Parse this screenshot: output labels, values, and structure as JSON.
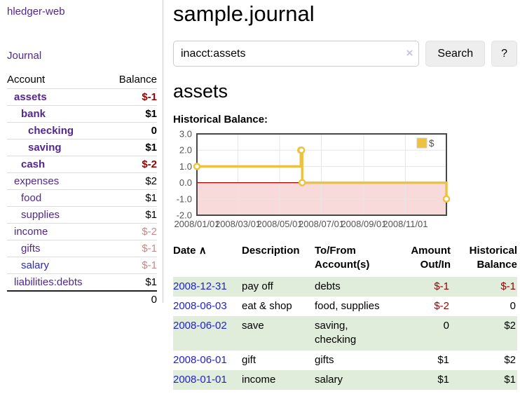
{
  "app": {
    "title": "hledger-web"
  },
  "colors": {
    "link_purple": "#52278f",
    "link_blue": "#2727cf",
    "date_link_blue": "#2222cc",
    "negative_strong": "#990000",
    "negative_muted": "#c38b8b",
    "row_stripe_green": "#dfedda",
    "chart_gold": "#edc240"
  },
  "sidebar": {
    "journal_link": "Journal",
    "accounts": {
      "header_account": "Account",
      "header_balance": "Balance",
      "rows": [
        {
          "name": "assets",
          "indent": 1,
          "bold": true,
          "balance": "$-1",
          "balance_style": "neg-strong"
        },
        {
          "name": "bank",
          "indent": 2,
          "bold": true,
          "balance": "$1",
          "balance_style": ""
        },
        {
          "name": "checking",
          "indent": 3,
          "bold": true,
          "balance": "0",
          "balance_style": ""
        },
        {
          "name": "saving",
          "indent": 3,
          "bold": true,
          "balance": "$1",
          "balance_style": ""
        },
        {
          "name": "cash",
          "indent": 2,
          "bold": true,
          "balance": "$-2",
          "balance_style": "neg-strong"
        },
        {
          "name": "expenses",
          "indent": 1,
          "bold": false,
          "balance": "$2",
          "balance_style": ""
        },
        {
          "name": "food",
          "indent": 2,
          "bold": false,
          "balance": "$1",
          "balance_style": ""
        },
        {
          "name": "supplies",
          "indent": 2,
          "bold": false,
          "balance": "$1",
          "balance_style": ""
        },
        {
          "name": "income",
          "indent": 1,
          "bold": false,
          "balance": "$-2",
          "balance_style": "neg-muted"
        },
        {
          "name": "gifts",
          "indent": 2,
          "bold": false,
          "balance": "$-1",
          "balance_style": "neg-muted"
        },
        {
          "name": "salary",
          "indent": 2,
          "bold": false,
          "link_color": "blue",
          "balance": "$-1",
          "balance_style": "neg-muted"
        },
        {
          "name": "liabilities:debts",
          "indent": 1,
          "bold": false,
          "balance": "$1",
          "balance_style": ""
        }
      ],
      "total": "0"
    }
  },
  "main": {
    "title": "sample.journal",
    "search": {
      "value": "inacct:assets",
      "clear_icon": "×",
      "search_button": "Search",
      "help_button": "?"
    },
    "account_heading": "assets",
    "chart_title": "Historical Balance:"
  },
  "chart_data": {
    "type": "line",
    "title": "Historical Balance:",
    "series": [
      {
        "name": "$",
        "color": "#edc240",
        "steps": true,
        "points": [
          [
            "2008-01-01",
            1
          ],
          [
            "2008-06-01",
            2
          ],
          [
            "2008-06-02",
            2
          ],
          [
            "2008-06-03",
            0
          ],
          [
            "2008-12-31",
            -1
          ]
        ]
      }
    ],
    "x_range": [
      "2008-01-01",
      "2008-12-31"
    ],
    "y_range": [
      -2,
      3
    ],
    "x_ticks": [
      {
        "date": "2008-01-01",
        "label": "2008/01/01"
      },
      {
        "date": "2008-03-01",
        "label": "2008/03/01"
      },
      {
        "date": "2008-05-01",
        "label": "2008/05/01"
      },
      {
        "date": "2008-07-01",
        "label": "2008/07/01"
      },
      {
        "date": "2008-09-01",
        "label": "2008/09/01"
      },
      {
        "date": "2008-11-01",
        "label": "2008/11/01"
      }
    ],
    "y_ticks": [
      {
        "v": 3,
        "label": "3.0"
      },
      {
        "v": 2,
        "label": "2.0"
      },
      {
        "v": 1,
        "label": "1.0"
      },
      {
        "v": 0,
        "label": "0.0"
      },
      {
        "v": -1,
        "label": "-1.0"
      },
      {
        "v": -2,
        "label": "-2.0"
      }
    ],
    "legend_position": "top-right",
    "grid": true,
    "grid_color": "#e6e6e6",
    "border_color": "#474747",
    "tick_color": "#545454",
    "negative_region": {
      "from": 0,
      "to": -2,
      "fill": "#f9dada"
    },
    "zero_line_color": "#9a0000"
  },
  "register": {
    "headers": [
      "Date",
      "Description",
      "To/From Account(s)",
      "Amount Out/In",
      "Historical Balance"
    ],
    "sort_indicator": "∧",
    "rows": [
      {
        "date": "2008-12-31",
        "description": "pay off",
        "accounts": "debts",
        "amount": "$-1",
        "balance": "$-1"
      },
      {
        "date": "2008-06-03",
        "description": "eat & shop",
        "accounts": "food, supplies",
        "amount": "$-2",
        "balance": "0"
      },
      {
        "date": "2008-06-02",
        "description": "save",
        "accounts": "saving, checking",
        "amount": "0",
        "balance": "$2"
      },
      {
        "date": "2008-06-01",
        "description": "gift",
        "accounts": "gifts",
        "amount": "$1",
        "balance": "$2"
      },
      {
        "date": "2008-01-01",
        "description": "income",
        "accounts": "salary",
        "amount": "$1",
        "balance": "$1"
      }
    ]
  }
}
